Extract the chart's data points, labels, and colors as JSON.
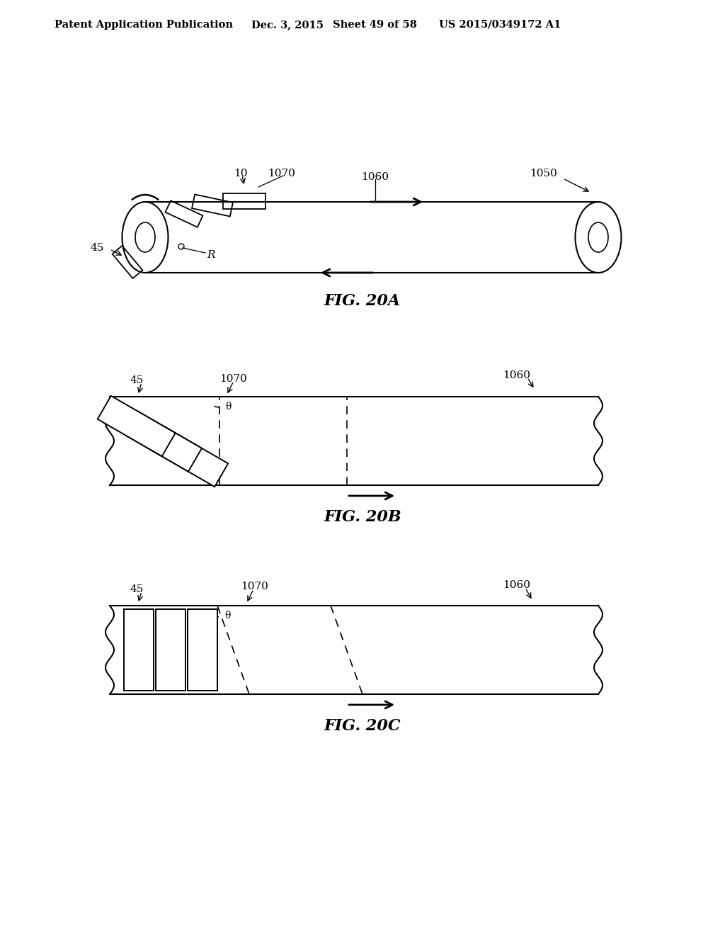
{
  "title_header": "Patent Application Publication",
  "date_header": "Dec. 3, 2015",
  "sheet_header": "Sheet 49 of 58",
  "patent_header": "US 2015/0349172 A1",
  "fig20a_title": "FIG. 20A",
  "fig20b_title": "FIG. 20B",
  "fig20c_title": "FIG. 20C",
  "bg_color": "#ffffff",
  "line_color": "#000000",
  "label_1050": "1050",
  "label_1060": "1060",
  "label_1070": "1070",
  "label_10": "10",
  "label_45": "45",
  "label_R": "R",
  "label_theta": "θ"
}
